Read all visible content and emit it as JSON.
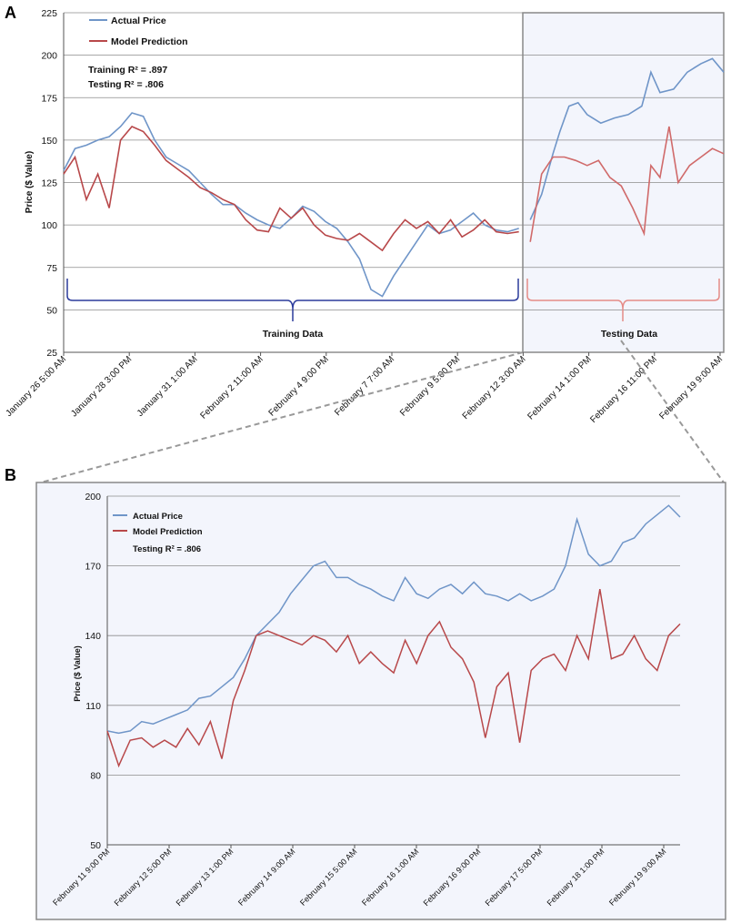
{
  "colors": {
    "actual": "#6f95c8",
    "model": "#b8484a",
    "grid": "#8c8c8c",
    "training_bracket": "#2c3c9c",
    "testing_bracket": "#e58b87",
    "shade": "#f3f5fc"
  },
  "chart_data": [
    {
      "panel": "A",
      "type": "line",
      "title": "",
      "xlabel": "",
      "ylabel": "Price ($ Value)",
      "ylim": [
        25,
        225
      ],
      "yticks": [
        25,
        50,
        75,
        100,
        125,
        150,
        175,
        200,
        225
      ],
      "xlim": [
        0,
        290
      ],
      "x_tick_labels": [
        "January 26 5:00 AM",
        "January 28 3:00 PM",
        "January 31 1:00 AM",
        "February 2 11:00 AM",
        "February 4 9:00 PM",
        "February 7 7:00 AM",
        "February 9 5:00 PM",
        "February 12 3:00 AM",
        "February 14 1:00 PM",
        "February 16 11:00 PM",
        "February 19 9:00 AM"
      ],
      "legend": [
        "Actual Price",
        "Model Prediction"
      ],
      "r2": [
        "Training R² = .897",
        "Testing R² = .806"
      ],
      "segments": [
        "Training Data",
        "Testing Data"
      ],
      "test_start_x": 202,
      "series": [
        {
          "name": "Actual Price",
          "points": [
            [
              0,
              132
            ],
            [
              5,
              145
            ],
            [
              10,
              147
            ],
            [
              15,
              150
            ],
            [
              20,
              152
            ],
            [
              25,
              158
            ],
            [
              30,
              166
            ],
            [
              35,
              164
            ],
            [
              40,
              150
            ],
            [
              45,
              140
            ],
            [
              50,
              136
            ],
            [
              55,
              132
            ],
            [
              60,
              125
            ],
            [
              65,
              118
            ],
            [
              70,
              112
            ],
            [
              75,
              112
            ],
            [
              80,
              107
            ],
            [
              85,
              103
            ],
            [
              90,
              100
            ],
            [
              95,
              98
            ],
            [
              100,
              104
            ],
            [
              105,
              111
            ],
            [
              110,
              108
            ],
            [
              115,
              102
            ],
            [
              120,
              98
            ],
            [
              125,
              90
            ],
            [
              130,
              80
            ],
            [
              135,
              62
            ],
            [
              140,
              58
            ],
            [
              145,
              70
            ],
            [
              150,
              80
            ],
            [
              155,
              90
            ],
            [
              160,
              100
            ],
            [
              165,
              95
            ],
            [
              170,
              97
            ],
            [
              175,
              102
            ],
            [
              180,
              107
            ],
            [
              185,
              100
            ],
            [
              190,
              97
            ],
            [
              195,
              96
            ],
            [
              200,
              98
            ],
            [
              205,
              103
            ],
            [
              210,
              118
            ],
            [
              215,
              142
            ],
            [
              218,
              155
            ],
            [
              222,
              170
            ],
            [
              226,
              172
            ],
            [
              230,
              165
            ],
            [
              236,
              160
            ],
            [
              242,
              163
            ],
            [
              248,
              165
            ],
            [
              254,
              170
            ],
            [
              258,
              190
            ],
            [
              262,
              178
            ],
            [
              268,
              180
            ],
            [
              274,
              190
            ],
            [
              280,
              195
            ],
            [
              285,
              198
            ],
            [
              290,
              190
            ]
          ]
        },
        {
          "name": "Model Prediction",
          "points": [
            [
              0,
              130
            ],
            [
              5,
              140
            ],
            [
              10,
              115
            ],
            [
              15,
              130
            ],
            [
              20,
              110
            ],
            [
              25,
              150
            ],
            [
              30,
              158
            ],
            [
              35,
              155
            ],
            [
              40,
              147
            ],
            [
              45,
              138
            ],
            [
              50,
              133
            ],
            [
              55,
              128
            ],
            [
              60,
              122
            ],
            [
              65,
              119
            ],
            [
              70,
              115
            ],
            [
              75,
              112
            ],
            [
              80,
              103
            ],
            [
              85,
              97
            ],
            [
              90,
              96
            ],
            [
              95,
              110
            ],
            [
              100,
              104
            ],
            [
              105,
              110
            ],
            [
              110,
              100
            ],
            [
              115,
              94
            ],
            [
              120,
              92
            ],
            [
              125,
              91
            ],
            [
              130,
              95
            ],
            [
              135,
              90
            ],
            [
              140,
              85
            ],
            [
              145,
              95
            ],
            [
              150,
              103
            ],
            [
              155,
              98
            ],
            [
              160,
              102
            ],
            [
              165,
              95
            ],
            [
              170,
              103
            ],
            [
              175,
              93
            ],
            [
              180,
              97
            ],
            [
              185,
              103
            ],
            [
              190,
              96
            ],
            [
              195,
              95
            ],
            [
              200,
              96
            ],
            [
              205,
              90
            ],
            [
              210,
              130
            ],
            [
              215,
              140
            ],
            [
              220,
              140
            ],
            [
              225,
              138
            ],
            [
              230,
              135
            ],
            [
              235,
              138
            ],
            [
              240,
              128
            ],
            [
              245,
              123
            ],
            [
              250,
              110
            ],
            [
              255,
              95
            ],
            [
              258,
              135
            ],
            [
              262,
              128
            ],
            [
              266,
              158
            ],
            [
              270,
              125
            ],
            [
              275,
              135
            ],
            [
              280,
              140
            ],
            [
              285,
              145
            ],
            [
              290,
              142
            ]
          ]
        }
      ]
    },
    {
      "panel": "B",
      "type": "line",
      "title": "",
      "xlabel": "",
      "ylabel": "Price ($ Value)",
      "ylim": [
        50,
        200
      ],
      "yticks": [
        50,
        80,
        110,
        140,
        170,
        200
      ],
      "xlim": [
        0,
        100
      ],
      "x_tick_labels": [
        "February 11 9:00 PM",
        "February 12 5:00 PM",
        "February 13 1:00 PM",
        "February 14 9:00 AM",
        "February 15 5:00 AM",
        "February 16 1:00 AM",
        "February 16 9:00 PM",
        "February 17 5:00 PM",
        "February 18 1:00 PM",
        "February 19 9:00 AM"
      ],
      "legend": [
        "Actual Price",
        "Model Prediction"
      ],
      "r2": [
        "Testing R² = .806"
      ],
      "series": [
        {
          "name": "Actual Price",
          "points": [
            [
              0,
              99
            ],
            [
              2,
              98
            ],
            [
              4,
              99
            ],
            [
              6,
              103
            ],
            [
              8,
              102
            ],
            [
              10,
              104
            ],
            [
              12,
              106
            ],
            [
              14,
              108
            ],
            [
              16,
              113
            ],
            [
              18,
              114
            ],
            [
              20,
              118
            ],
            [
              22,
              122
            ],
            [
              24,
              130
            ],
            [
              26,
              140
            ],
            [
              28,
              145
            ],
            [
              30,
              150
            ],
            [
              32,
              158
            ],
            [
              34,
              164
            ],
            [
              36,
              170
            ],
            [
              38,
              172
            ],
            [
              40,
              165
            ],
            [
              42,
              165
            ],
            [
              44,
              162
            ],
            [
              46,
              160
            ],
            [
              48,
              157
            ],
            [
              50,
              155
            ],
            [
              52,
              165
            ],
            [
              54,
              158
            ],
            [
              56,
              156
            ],
            [
              58,
              160
            ],
            [
              60,
              162
            ],
            [
              62,
              158
            ],
            [
              64,
              163
            ],
            [
              66,
              158
            ],
            [
              68,
              157
            ],
            [
              70,
              155
            ],
            [
              72,
              158
            ],
            [
              74,
              155
            ],
            [
              76,
              157
            ],
            [
              78,
              160
            ],
            [
              80,
              170
            ],
            [
              82,
              190
            ],
            [
              84,
              175
            ],
            [
              86,
              170
            ],
            [
              88,
              172
            ],
            [
              90,
              180
            ],
            [
              92,
              182
            ],
            [
              94,
              188
            ],
            [
              96,
              192
            ],
            [
              98,
              196
            ],
            [
              100,
              191
            ]
          ]
        },
        {
          "name": "Model Prediction",
          "points": [
            [
              0,
              99
            ],
            [
              2,
              84
            ],
            [
              4,
              95
            ],
            [
              6,
              96
            ],
            [
              8,
              92
            ],
            [
              10,
              95
            ],
            [
              12,
              92
            ],
            [
              14,
              100
            ],
            [
              16,
              93
            ],
            [
              18,
              103
            ],
            [
              20,
              87
            ],
            [
              22,
              112
            ],
            [
              24,
              125
            ],
            [
              26,
              140
            ],
            [
              28,
              142
            ],
            [
              30,
              140
            ],
            [
              32,
              138
            ],
            [
              34,
              136
            ],
            [
              36,
              140
            ],
            [
              38,
              138
            ],
            [
              40,
              133
            ],
            [
              42,
              140
            ],
            [
              44,
              128
            ],
            [
              46,
              133
            ],
            [
              48,
              128
            ],
            [
              50,
              124
            ],
            [
              52,
              138
            ],
            [
              54,
              128
            ],
            [
              56,
              140
            ],
            [
              58,
              146
            ],
            [
              60,
              135
            ],
            [
              62,
              130
            ],
            [
              64,
              120
            ],
            [
              66,
              96
            ],
            [
              68,
              118
            ],
            [
              70,
              124
            ],
            [
              72,
              94
            ],
            [
              74,
              125
            ],
            [
              76,
              130
            ],
            [
              78,
              132
            ],
            [
              80,
              125
            ],
            [
              82,
              140
            ],
            [
              84,
              130
            ],
            [
              86,
              160
            ],
            [
              88,
              130
            ],
            [
              90,
              132
            ],
            [
              92,
              140
            ],
            [
              94,
              130
            ],
            [
              96,
              125
            ],
            [
              98,
              140
            ],
            [
              100,
              145
            ]
          ]
        }
      ]
    }
  ]
}
